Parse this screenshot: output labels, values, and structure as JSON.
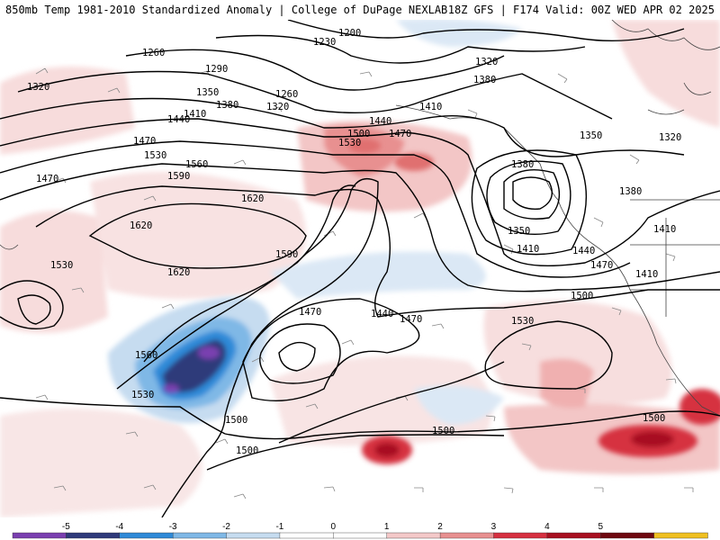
{
  "header": {
    "title_left": "850mb Temp 1981-2010 Standardized Anomaly | College of DuPage NEXLAB",
    "title_right": "18Z GFS | F174 Valid: 00Z WED APR 02 2025"
  },
  "contour_labels": [
    "1200",
    "1230",
    "1260",
    "1290",
    "1320",
    "1350",
    "1380",
    "1410",
    "1440",
    "1470",
    "1500",
    "1530",
    "1560",
    "1590",
    "1620",
    "1260",
    "1320",
    "1380",
    "1410",
    "1440",
    "1470",
    "1500",
    "1530",
    "1470",
    "1620",
    "1590",
    "1620",
    "1530",
    "1560",
    "1530",
    "1500",
    "1500",
    "1470",
    "1440",
    "1470",
    "1500",
    "1530",
    "1500",
    "1380",
    "1350",
    "1410",
    "1440",
    "1470",
    "1410",
    "1380",
    "1350",
    "1320",
    "1320",
    "1410",
    "1500"
  ],
  "colorbar": {
    "tick_labels": [
      "-5",
      "-4",
      "-3",
      "-2",
      "-1",
      "0",
      "1",
      "2",
      "3",
      "4",
      "5"
    ],
    "colors": [
      "#7a3fb0",
      "#2e3a7a",
      "#2f8ad8",
      "#7fb8e6",
      "#c6dcf0",
      "#ffffff",
      "#ffffff",
      "#f4c9c9",
      "#e89090",
      "#d63040",
      "#a81020",
      "#6e0810",
      "#f0c020"
    ]
  }
}
